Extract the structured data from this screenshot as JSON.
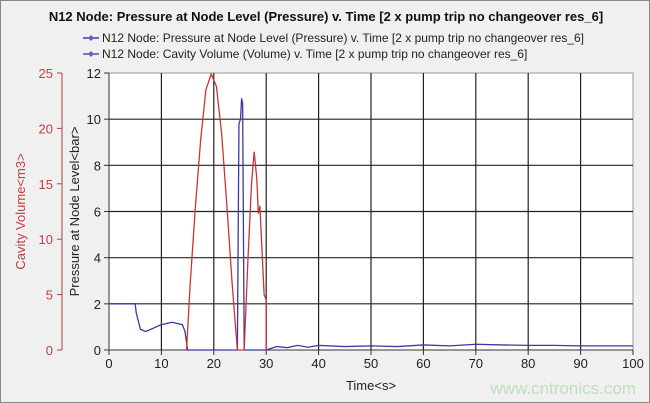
{
  "chart_data": {
    "type": "line",
    "title": "N12 Node: Pressure at Node Level (Pressure) v. Time [2 x pump trip no changeover res_6]",
    "xlabel": "Time<s>",
    "ylabel": "Pressure at Node Level<bar>",
    "y2label": "Cavity Volume<m3>",
    "xlim": [
      0,
      100
    ],
    "ylim": [
      0,
      12
    ],
    "y2lim": [
      0,
      25
    ],
    "xticks": [
      0,
      10,
      20,
      30,
      40,
      50,
      60,
      70,
      80,
      90,
      100
    ],
    "yticks": [
      0,
      2,
      4,
      6,
      8,
      10,
      12
    ],
    "y2ticks": [
      0,
      5,
      10,
      15,
      20,
      25
    ],
    "grid": true,
    "legend_position": "top",
    "series": [
      {
        "name": "N12 Node: Pressure at Node Level (Pressure) v. Time [2 x pump trip no changeover res_6]",
        "axis": "left",
        "color": "#3a3aa0",
        "x": [
          0,
          5,
          5.2,
          6,
          7,
          8,
          9,
          10,
          11,
          12,
          13,
          14,
          14.5,
          15,
          24.5,
          24.8,
          25.1,
          25.3,
          25.5,
          25.8,
          26,
          30,
          32,
          34,
          36,
          38,
          40,
          45,
          50,
          55,
          60,
          65,
          70,
          75,
          80,
          85,
          90,
          95,
          100
        ],
        "y": [
          2,
          2,
          1.6,
          0.9,
          0.8,
          0.9,
          1.0,
          1.1,
          1.15,
          1.2,
          1.15,
          1.1,
          0.8,
          0,
          0,
          9.8,
          10.0,
          10.9,
          10.7,
          0,
          0,
          0,
          0.15,
          0.1,
          0.2,
          0.12,
          0.2,
          0.15,
          0.18,
          0.15,
          0.22,
          0.18,
          0.25,
          0.22,
          0.2,
          0.2,
          0.18,
          0.18,
          0.18
        ]
      },
      {
        "name": "N12 Node: Cavity Volume (Volume) v. Time [2 x pump trip no changeover res_6]",
        "axis": "right",
        "color": "#cc3333",
        "x": [
          14.8,
          15.5,
          16.5,
          17.5,
          18.5,
          19.5,
          20.5,
          21.5,
          22.5,
          23.5,
          24.5,
          25.8,
          26.5,
          27.2,
          27.7,
          28.2,
          28.5,
          28.8,
          29.3,
          29.6,
          30,
          30.01
        ],
        "y": [
          0,
          6,
          13,
          19,
          23.5,
          24.9,
          23.8,
          19.5,
          13,
          6,
          0,
          0,
          8,
          15,
          17.9,
          15.5,
          12.3,
          13,
          8,
          5,
          4.5,
          0
        ]
      }
    ],
    "watermark": "www.cntronics.com"
  }
}
